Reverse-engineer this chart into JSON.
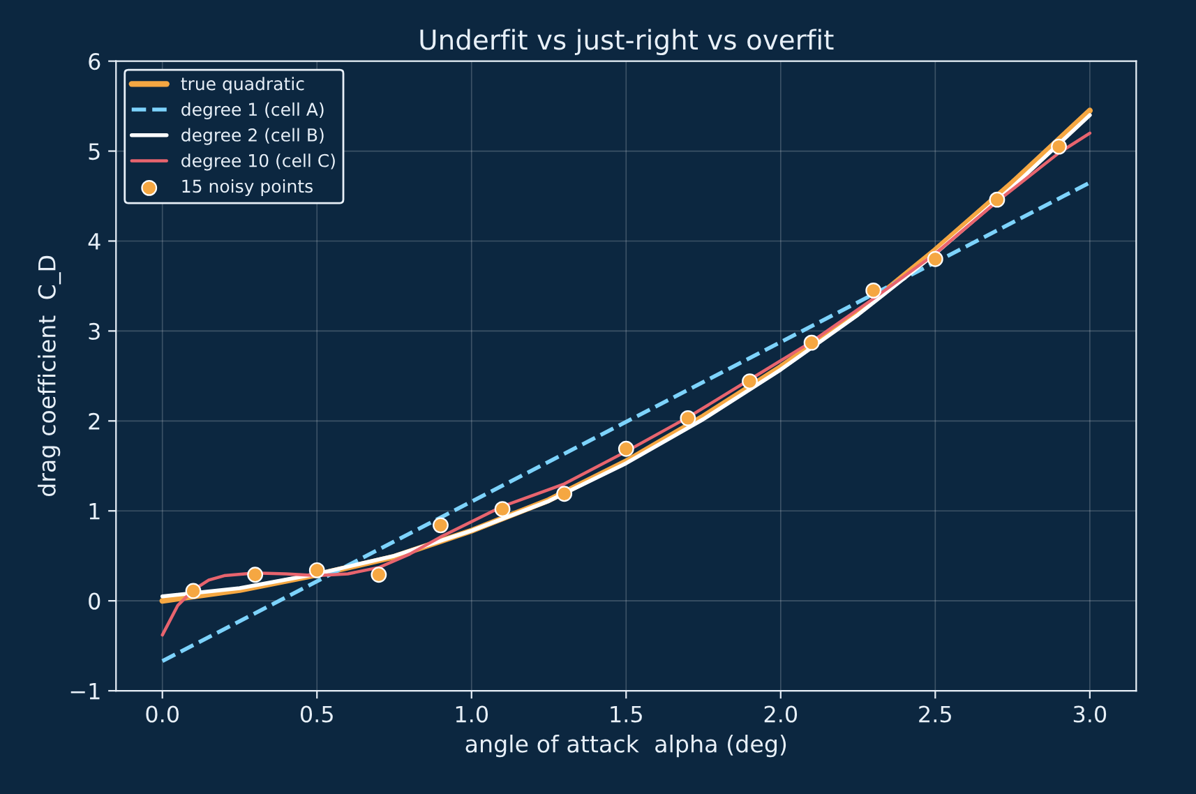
{
  "chart_data": {
    "type": "line",
    "title": "Underfit vs just-right vs overfit",
    "xlabel": "angle of attack  alpha (deg)",
    "ylabel": "drag coefficient  C_D",
    "xlim": [
      -0.15,
      3.15
    ],
    "ylim": [
      -1,
      6
    ],
    "xticks": [
      {
        "value": 0,
        "label": "0.0"
      },
      {
        "value": 0.5,
        "label": "0.5"
      },
      {
        "value": 1,
        "label": "1.0"
      },
      {
        "value": 1.5,
        "label": "1.5"
      },
      {
        "value": 2,
        "label": "2.0"
      },
      {
        "value": 2.5,
        "label": "2.5"
      },
      {
        "value": 3,
        "label": "3.0"
      }
    ],
    "yticks": [
      {
        "value": -1,
        "label": "−1"
      },
      0,
      1,
      2,
      3,
      4,
      5,
      6
    ],
    "grid": true,
    "legend": "top left",
    "series": [
      {
        "name": "true quadratic",
        "color": "#f5a742",
        "line_style": "solid",
        "x": [
          0,
          0.25,
          0.5,
          0.75,
          1,
          1.25,
          1.5,
          1.75,
          2,
          2.25,
          2.5,
          2.75,
          3
        ],
        "values": [
          0.0,
          0.12,
          0.29,
          0.49,
          0.78,
          1.12,
          1.55,
          2.05,
          2.6,
          3.2,
          3.9,
          4.65,
          5.45
        ]
      },
      {
        "name": "degree 1 (cell A)",
        "color": "#7dd3fc",
        "line_style": "dashed",
        "x": [
          0,
          3
        ],
        "values": [
          -0.67,
          4.65
        ]
      },
      {
        "name": "degree 2 (cell B)",
        "color": "#ffffff",
        "line_style": "solid",
        "x": [
          0,
          0.25,
          0.5,
          0.75,
          1,
          1.25,
          1.5,
          1.75,
          2,
          2.25,
          2.5,
          2.75,
          3
        ],
        "values": [
          0.05,
          0.14,
          0.3,
          0.5,
          0.78,
          1.11,
          1.53,
          2.02,
          2.57,
          3.18,
          3.86,
          4.6,
          5.4
        ]
      },
      {
        "name": "degree 10 (cell C)",
        "color": "#e8646e",
        "line_style": "solid",
        "x": [
          0,
          0.05,
          0.1,
          0.15,
          0.2,
          0.3,
          0.4,
          0.5,
          0.6,
          0.7,
          0.8,
          0.9,
          1.1,
          1.3,
          1.5,
          1.7,
          1.9,
          2.1,
          2.3,
          2.5,
          2.7,
          2.9,
          3.0
        ],
        "values": [
          -0.38,
          -0.05,
          0.12,
          0.23,
          0.28,
          0.31,
          0.3,
          0.28,
          0.3,
          0.37,
          0.52,
          0.71,
          1.05,
          1.3,
          1.66,
          2.04,
          2.46,
          2.88,
          3.36,
          3.86,
          4.44,
          4.98,
          5.2
        ]
      },
      {
        "name": "15 noisy points",
        "type": "scatter",
        "marker": "circle",
        "color": "#f5a742",
        "x": [
          0.1,
          0.3,
          0.5,
          0.7,
          0.9,
          1.1,
          1.3,
          1.5,
          1.7,
          1.9,
          2.1,
          2.3,
          2.5,
          2.7,
          2.9
        ],
        "values": [
          0.11,
          0.29,
          0.34,
          0.29,
          0.84,
          1.02,
          1.19,
          1.69,
          2.03,
          2.44,
          2.87,
          3.45,
          3.8,
          4.46,
          5.05
        ]
      }
    ]
  }
}
